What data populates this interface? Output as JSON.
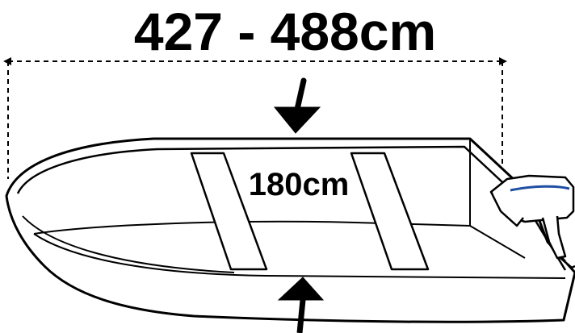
{
  "diagram": {
    "length_label": "427 - 488cm",
    "beam_label": "180cm",
    "line_color": "#000000",
    "motor_accent_color": "#1f4fa3",
    "icons": [
      "boat-hull-icon",
      "outboard-motor-icon",
      "arrow-down-icon",
      "arrow-up-icon"
    ]
  }
}
